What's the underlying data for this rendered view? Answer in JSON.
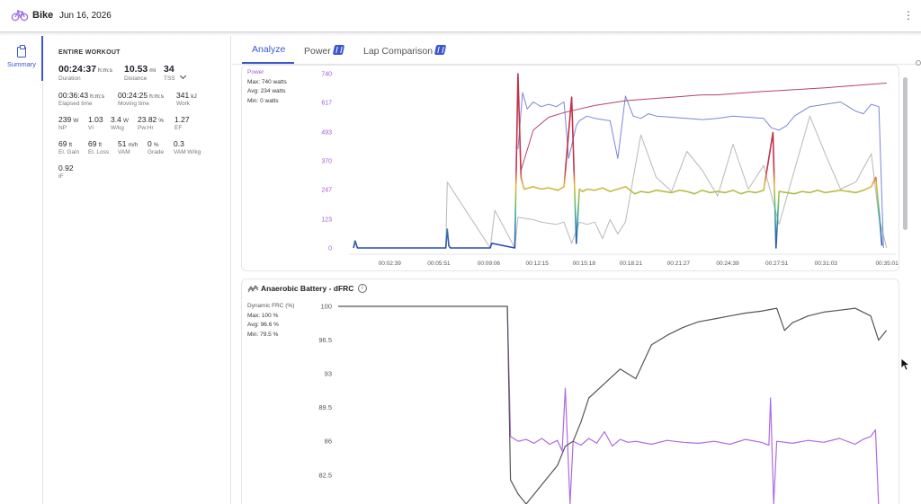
{
  "header": {
    "title": "Bike",
    "date": "Jun 16, 2026",
    "menu_icon": "kebab-icon"
  },
  "rail": {
    "summary_label": "Summary",
    "icon": "clipboard-icon"
  },
  "summary": {
    "heading": "ENTIRE WORKOUT",
    "rows": [
      [
        {
          "value": "00:24:37",
          "unit": "h:m:s",
          "label": "Duration"
        },
        {
          "value": "10.53",
          "unit": "mi",
          "label": "Distance"
        },
        {
          "value": "34",
          "unit": "",
          "label": "TSS"
        }
      ],
      [
        {
          "value": "00:36:43",
          "unit": "h:m:s",
          "label": "Elapsed time"
        },
        {
          "value": "00:24:25",
          "unit": "h:m:s",
          "label": "Moving time"
        },
        {
          "value": "341",
          "unit": "kJ",
          "label": "Work"
        }
      ],
      [
        {
          "value": "239",
          "unit": "W",
          "label": "NP"
        },
        {
          "value": "1.03",
          "unit": "",
          "label": "VI"
        },
        {
          "value": "3.4",
          "unit": "W",
          "label": "W/kg"
        },
        {
          "value": "23.82",
          "unit": "%",
          "label": "Pw:Hr"
        },
        {
          "value": "1.27",
          "unit": "",
          "label": "EF"
        }
      ],
      [
        {
          "value": "69",
          "unit": "ft",
          "label": "El. Gain"
        },
        {
          "value": "69",
          "unit": "ft",
          "label": "El. Loss"
        },
        {
          "value": "51",
          "unit": "m/h",
          "label": "VAM"
        },
        {
          "value": "0",
          "unit": "%",
          "label": "Grade"
        },
        {
          "value": "0.3",
          "unit": "",
          "label": "VAM W/kg"
        }
      ],
      [
        {
          "value": "0.92",
          "unit": "",
          "label": "IF"
        }
      ]
    ]
  },
  "tabs": [
    {
      "label": "Analyze",
      "active": true
    },
    {
      "label": "Power",
      "active": false,
      "badge": true
    },
    {
      "label": "Lap Comparison",
      "active": false,
      "badge": true
    }
  ],
  "power_chart": {
    "legend": {
      "name": "Power",
      "max": "Max: 740 watts",
      "avg": "Avg: 234 watts",
      "min": "Min: 0 watts"
    }
  },
  "dfrc_chart": {
    "title": "Anaerobic Battery - dFRC",
    "legend": {
      "name": "Dynamic FRC (%)",
      "max": "Max: 100 %",
      "avg": "Avg: 96.6 %",
      "min": "Min: 79.5 %"
    }
  },
  "chart_data": [
    {
      "type": "line",
      "title": "",
      "ylabel": "",
      "yticks": [
        "740",
        "617",
        "493",
        "370",
        "247",
        "123",
        "0"
      ],
      "ytick_values": [
        740,
        617,
        493,
        370,
        247,
        123,
        0
      ],
      "ylim": [
        0,
        740
      ],
      "xticks": [
        "00:02:39",
        "00:05:51",
        "00:09:06",
        "00:12:15",
        "00:15:18",
        "00:18:21",
        "00:21:27",
        "00:24:39",
        "00:27:51",
        "00:31:03",
        "00:35:01"
      ],
      "xtick_values": [
        2.65,
        5.85,
        9.1,
        12.25,
        15.3,
        18.35,
        21.45,
        24.65,
        27.85,
        31.05,
        35.02
      ],
      "xlim": [
        0,
        35.6
      ],
      "colors": {
        "power_gradient": [
          "#c0334b",
          "#e8b63a",
          "#7fc45a",
          "#3aa0a8",
          "#2b4bb0"
        ],
        "upper": "#b8426a",
        "blue": "#7a86d8",
        "grey": "#b8b8bc"
      },
      "series": [
        {
          "name": "Power",
          "x": [
            0.3,
            0.4,
            0.45,
            0.55,
            6.3,
            6.4,
            6.5,
            6.6,
            9.2,
            9.3,
            10.8,
            11.0,
            11.2,
            11.4,
            12.0,
            12.5,
            13.0,
            13.6,
            14.0,
            14.5,
            14.8,
            15.0,
            15.2,
            15.5,
            16.0,
            16.5,
            17.0,
            17.5,
            18.0,
            18.3,
            18.6,
            19.0,
            19.5,
            20.0,
            20.5,
            21.0,
            21.5,
            22.0,
            22.5,
            23.0,
            23.5,
            24.0,
            24.5,
            25.0,
            25.5,
            26.0,
            26.5,
            27.0,
            27.6,
            27.8,
            28.0,
            28.5,
            29.0,
            29.5,
            30.0,
            30.5,
            31.0,
            31.5,
            32.0,
            32.5,
            33.0,
            33.5,
            34.0,
            34.3,
            34.5,
            34.7
          ],
          "y": [
            0,
            30,
            20,
            0,
            0,
            80,
            10,
            0,
            0,
            20,
            0,
            740,
            300,
            250,
            260,
            250,
            255,
            245,
            260,
            640,
            20,
            250,
            240,
            250,
            245,
            255,
            240,
            250,
            260,
            245,
            230,
            240,
            235,
            245,
            240,
            235,
            245,
            240,
            230,
            245,
            235,
            240,
            235,
            245,
            230,
            240,
            235,
            245,
            490,
            0,
            240,
            235,
            230,
            240,
            235,
            245,
            235,
            240,
            245,
            240,
            235,
            245,
            260,
            300,
            160,
            10
          ]
        },
        {
          "name": "",
          "x": [
            11.2,
            12.0,
            13.0,
            14.0,
            15.0,
            16.0,
            17.0,
            18.0,
            19.0,
            20.0,
            21.0,
            22.0,
            23.0,
            24.0,
            25.0,
            26.0,
            27.0,
            28.0,
            29.0,
            30.0,
            31.0,
            32.0,
            33.0,
            34.0,
            35.0
          ],
          "y": [
            330,
            500,
            555,
            575,
            590,
            605,
            615,
            625,
            630,
            635,
            640,
            645,
            650,
            650,
            655,
            660,
            665,
            668,
            672,
            676,
            680,
            685,
            690,
            695,
            700
          ]
        },
        {
          "name": "",
          "x": [
            11.0,
            11.3,
            11.6,
            12.0,
            12.5,
            13.0,
            13.5,
            14.0,
            14.3,
            14.8,
            15.0,
            15.5,
            16.0,
            16.5,
            17.0,
            17.5,
            18.0,
            18.5,
            19.0,
            19.5,
            20.0,
            21.0,
            22.0,
            23.0,
            24.0,
            25.0,
            26.0,
            27.0,
            27.5,
            28.0,
            28.5,
            29.0,
            29.5,
            30.0,
            31.0,
            32.0,
            32.5,
            33.0,
            33.5,
            34.0,
            34.5,
            34.8
          ],
          "y": [
            420,
            660,
            590,
            620,
            600,
            610,
            600,
            620,
            380,
            520,
            540,
            560,
            550,
            545,
            540,
            380,
            645,
            560,
            550,
            570,
            560,
            555,
            550,
            545,
            550,
            560,
            555,
            550,
            510,
            500,
            520,
            560,
            580,
            600,
            610,
            620,
            600,
            580,
            570,
            610,
            600,
            0
          ]
        },
        {
          "name": "",
          "x": [
            6.3,
            6.4,
            9.2,
            9.5,
            10.8,
            11.0,
            12.0,
            12.5,
            13.5,
            14.0,
            14.5,
            15.0,
            15.5,
            16.0,
            16.5,
            17.0,
            17.5,
            18.0,
            19.0,
            20.0,
            21.0,
            22.0,
            23.0,
            24.0,
            25.0,
            26.0,
            27.0,
            28.0,
            29.0,
            30.0,
            31.0,
            32.0,
            33.0,
            34.0,
            34.5,
            35.0
          ],
          "y": [
            0,
            280,
            0,
            160,
            0,
            130,
            120,
            110,
            100,
            110,
            20,
            110,
            100,
            110,
            40,
            120,
            60,
            110,
            480,
            300,
            240,
            410,
            330,
            220,
            440,
            250,
            350,
            100,
            330,
            560,
            400,
            250,
            280,
            400,
            130,
            0
          ]
        }
      ]
    },
    {
      "type": "line",
      "title": "Anaerobic Battery - dFRC",
      "ylabel": "",
      "yticks": [
        "100",
        "96.5",
        "93",
        "89.5",
        "86",
        "82.5"
      ],
      "ytick_values": [
        100,
        96.5,
        93,
        89.5,
        86,
        82.5
      ],
      "ylim": [
        79.5,
        100
      ],
      "xlim": [
        0,
        35.6
      ],
      "colors": {
        "dfrc": "#555555",
        "power_overlay": "#b06ae0"
      },
      "series": [
        {
          "name": "Dynamic FRC (%)",
          "x": [
            0,
            4,
            8,
            10.8,
            11.0,
            11.5,
            12.0,
            12.5,
            13.0,
            13.5,
            14.0,
            14.5,
            15.0,
            15.5,
            16.0,
            17.0,
            18.0,
            19.0,
            20.0,
            21.0,
            22.0,
            23.0,
            24.0,
            25.0,
            26.0,
            27.0,
            28.0,
            28.5,
            29.0,
            30.0,
            31.0,
            32.0,
            33.0,
            34.0,
            34.5,
            35.0
          ],
          "y": [
            100,
            100,
            100,
            100,
            82.0,
            80.5,
            79.5,
            80.5,
            81.5,
            82.5,
            83.5,
            85.5,
            86.0,
            88.0,
            90.5,
            92.0,
            93.5,
            92.5,
            96.0,
            97.0,
            97.8,
            98.4,
            98.7,
            99.0,
            99.3,
            99.5,
            99.8,
            97.5,
            98.3,
            99.0,
            99.4,
            99.6,
            99.8,
            99.0,
            96.5,
            97.5
          ]
        },
        {
          "name": "Power",
          "x": [
            10.8,
            11.0,
            11.5,
            12.0,
            12.5,
            13.0,
            13.5,
            14.0,
            14.3,
            14.5,
            14.8,
            15.0,
            15.5,
            16.0,
            16.5,
            17.0,
            17.5,
            18.0,
            18.5,
            19.0,
            20.0,
            21.0,
            22.0,
            23.0,
            24.0,
            25.0,
            26.0,
            27.0,
            27.5,
            27.6,
            27.8,
            28.0,
            29.0,
            30.0,
            31.0,
            32.0,
            33.0,
            33.5,
            34.0,
            34.3,
            34.5
          ],
          "y": [
            100,
            86.5,
            86.0,
            86.2,
            85.8,
            86.3,
            85.7,
            86.1,
            85.0,
            91.5,
            79.5,
            86.0,
            85.6,
            86.3,
            85.8,
            87.0,
            85.5,
            86.2,
            85.9,
            86.0,
            85.7,
            86.1,
            85.9,
            85.8,
            86.0,
            85.7,
            86.2,
            85.9,
            85.6,
            90.5,
            79.5,
            86.0,
            85.8,
            86.1,
            85.9,
            86.3,
            85.7,
            86.2,
            86.5,
            87.2,
            79.5
          ]
        }
      ]
    }
  ]
}
